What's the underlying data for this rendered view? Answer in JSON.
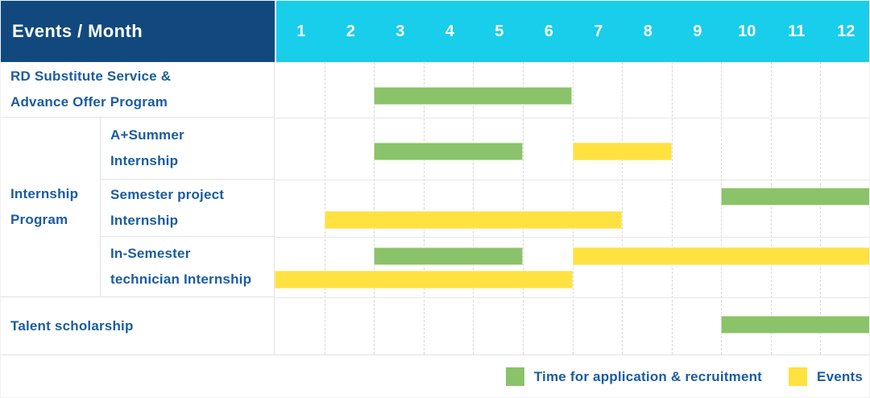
{
  "table": {
    "header_title": "Events / Month",
    "months": [
      "1",
      "2",
      "3",
      "4",
      "5",
      "6",
      "7",
      "8",
      "9",
      "10",
      "11",
      "12"
    ],
    "row_labels": {
      "rd": "RD Substitute Service &\nAdvance Offer Program",
      "group_internship": "Internship\nProgram",
      "a_summer": "A+Summer\nInternship",
      "semester_project": "Semester project\nInternship",
      "in_semester": "In-Semester\ntechnician Internship",
      "talent": "Talent scholarship"
    }
  },
  "chart_data": {
    "type": "gantt",
    "title": "Events / Month",
    "x_unit": "month",
    "x_range": [
      1,
      12
    ],
    "grid": true,
    "legend_position": "bottom-right",
    "rows": [
      {
        "group": null,
        "label": "RD Substitute Service & Advance Offer Program",
        "bars": [
          {
            "type": "recruitment",
            "start_month": 3,
            "end_month": 6,
            "line": "single"
          }
        ]
      },
      {
        "group": "Internship Program",
        "label": "A+Summer Internship",
        "bars": [
          {
            "type": "recruitment",
            "start_month": 3,
            "end_month": 5,
            "line": "single"
          },
          {
            "type": "event",
            "start_month": 7,
            "end_month": 8,
            "line": "single"
          }
        ]
      },
      {
        "group": "Internship Program",
        "label": "Semester project Internship",
        "bars": [
          {
            "type": "recruitment",
            "start_month": 10,
            "end_month": 12,
            "line": "top"
          },
          {
            "type": "event",
            "start_month": 2,
            "end_month": 7,
            "line": "bottom"
          }
        ]
      },
      {
        "group": "Internship Program",
        "label": "In-Semester technician Internship",
        "bars": [
          {
            "type": "recruitment",
            "start_month": 3,
            "end_month": 5,
            "line": "top"
          },
          {
            "type": "event",
            "start_month": 7,
            "end_month": 12,
            "line": "top"
          },
          {
            "type": "event",
            "start_month": 1,
            "end_month": 6,
            "line": "bottom"
          }
        ]
      },
      {
        "group": null,
        "label": "Talent scholarship",
        "bars": [
          {
            "type": "recruitment",
            "start_month": 10,
            "end_month": 12,
            "line": "single"
          }
        ]
      }
    ]
  },
  "legend": {
    "items": [
      {
        "swatch": "green-swatch",
        "type": "recruitment",
        "label": "Time for application & recruitment",
        "color": "#8ac36a",
        "border": "#c8e3ae"
      },
      {
        "swatch": "yellow-swatch",
        "type": "event",
        "label": "Events",
        "color": "#ffe23f",
        "border": "#fbeb8e"
      }
    ]
  },
  "colors": {
    "header_navy": "#11497e",
    "header_cyan": "#18ceea",
    "bar_green": "#8ac36a",
    "bar_green_border": "#c8e3ae",
    "bar_yellow": "#ffe23f",
    "bar_yellow_border": "#fbeb8e",
    "label_blue": "#1a5c9e"
  }
}
